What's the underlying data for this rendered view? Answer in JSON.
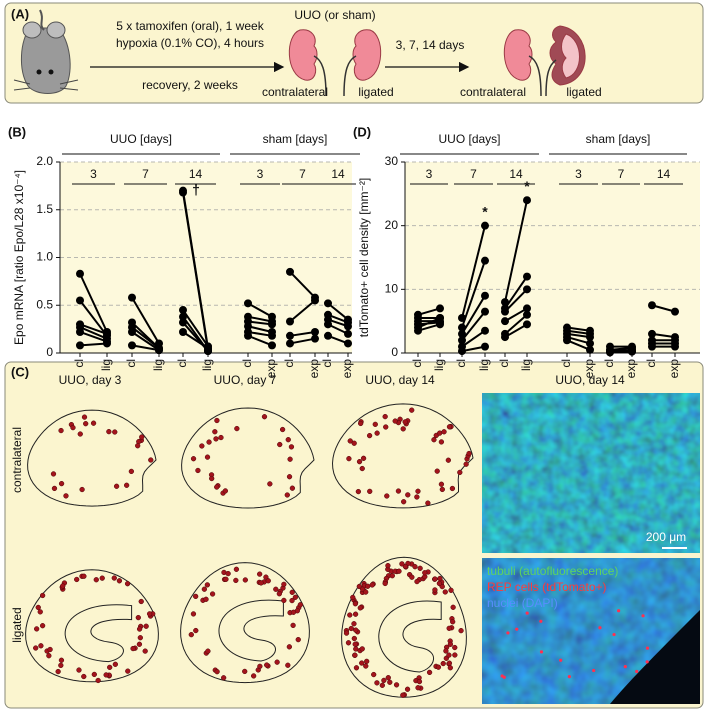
{
  "panel_a": {
    "label": "(A)",
    "step1_line1": "5 x tamoxifen (oral), 1 week",
    "step1_line2": "hypoxia (0.1% CO), 4 hours",
    "step1_below": "recovery, 2 weeks",
    "surgery": "UUO (or sham)",
    "kidney1_left": "contralateral",
    "kidney1_right": "ligated",
    "step2": "3, 7, 14 days",
    "kidney2_left": "contralateral",
    "kidney2_right": "ligated"
  },
  "chart_data": [
    {
      "type": "paired",
      "panel_label": "(B)",
      "y_label": "Epo mRNA [ratio Epo/L28 x10⁻⁴]",
      "ylim": [
        0,
        2
      ],
      "yticks": [
        0,
        0.5,
        {
          "value": 1,
          "label": "1.0"
        },
        {
          "value": 1.5,
          "label": "1.5"
        },
        {
          "value": 2,
          "label": "2.0"
        }
      ],
      "grid": true,
      "color": "#000000",
      "groups": [
        {
          "name": "UUO [days]",
          "sets": [
            {
              "name": "3",
              "labels": [
                "cl",
                "lig"
              ],
              "pairs": [
                [
                  0.83,
                  0.22
                ],
                [
                  0.55,
                  0.18
                ],
                [
                  0.3,
                  0.2
                ],
                [
                  0.27,
                  0.15
                ],
                [
                  0.22,
                  0.12
                ],
                [
                  0.08,
                  0.1
                ]
              ]
            },
            {
              "name": "7",
              "labels": [
                "cl",
                "lig"
              ],
              "pairs": [
                [
                  0.58,
                  0.1
                ],
                [
                  0.32,
                  0.05
                ],
                [
                  0.27,
                  0.05
                ],
                [
                  0.22,
                  0.03
                ],
                [
                  0.08,
                  0.03
                ]
              ]
            },
            {
              "name": "14",
              "labels": [
                "cl",
                "lig"
              ],
              "annotation": "†",
              "pairs": [
                [
                  1.7,
                  0.05
                ],
                [
                  1.68,
                  0.03
                ],
                [
                  0.45,
                  0.07
                ],
                [
                  0.38,
                  0.02
                ],
                [
                  0.32,
                  0.02
                ],
                [
                  0.22,
                  0.05
                ]
              ]
            }
          ]
        },
        {
          "name": "sham [days]",
          "sets": [
            {
              "name": "3",
              "labels": [
                "cl",
                "exp"
              ],
              "pairs": [
                [
                  0.52,
                  0.38
                ],
                [
                  0.38,
                  0.33
                ],
                [
                  0.33,
                  0.3
                ],
                [
                  0.28,
                  0.22
                ],
                [
                  0.22,
                  0.18
                ],
                [
                  0.18,
                  0.08
                ]
              ]
            },
            {
              "name": "7",
              "labels": [
                "cl",
                "exp"
              ],
              "pairs": [
                [
                  0.85,
                  0.58
                ],
                [
                  0.33,
                  0.55
                ],
                [
                  0.18,
                  0.22
                ],
                [
                  0.1,
                  0.15
                ]
              ]
            },
            {
              "name": "14",
              "labels": [
                "cl",
                "exp"
              ],
              "pairs": [
                [
                  0.52,
                  0.35
                ],
                [
                  0.4,
                  0.32
                ],
                [
                  0.35,
                  0.28
                ],
                [
                  0.3,
                  0.2
                ],
                [
                  0.18,
                  0.1
                ]
              ]
            }
          ]
        }
      ]
    },
    {
      "type": "paired",
      "panel_label": "(D)",
      "y_label": "tdTomato+ cell density [mm⁻²]",
      "ylim": [
        0,
        30
      ],
      "yticks": [
        0,
        10,
        20,
        30
      ],
      "grid": true,
      "color": "#000000",
      "groups": [
        {
          "name": "UUO [days]",
          "sets": [
            {
              "name": "3",
              "labels": [
                "cl",
                "lig"
              ],
              "pairs": [
                [
                  6,
                  7
                ],
                [
                  5.5,
                  5.5
                ],
                [
                  5,
                  5
                ],
                [
                  4.5,
                  4.8
                ],
                [
                  4,
                  5.5
                ],
                [
                  3.5,
                  4.5
                ]
              ]
            },
            {
              "name": "7",
              "labels": [
                "cl",
                "lig"
              ],
              "annotation": "*",
              "pairs": [
                [
                  5.5,
                  20
                ],
                [
                  4,
                  14.5
                ],
                [
                  3,
                  9
                ],
                [
                  2,
                  6.5
                ],
                [
                  1,
                  3.5
                ],
                [
                  0.3,
                  1
                ]
              ]
            },
            {
              "name": "14",
              "labels": [
                "cl",
                "lig"
              ],
              "annotation": "*",
              "pairs": [
                [
                  8,
                  24
                ],
                [
                  7,
                  12
                ],
                [
                  6.5,
                  10
                ],
                [
                  5,
                  7
                ],
                [
                  3,
                  6
                ],
                [
                  2.5,
                  4.5
                ]
              ]
            }
          ]
        },
        {
          "name": "sham [days]",
          "sets": [
            {
              "name": "3",
              "labels": [
                "cl",
                "exp"
              ],
              "pairs": [
                [
                  4,
                  3.5
                ],
                [
                  3.5,
                  3
                ],
                [
                  3,
                  2.5
                ],
                [
                  2.5,
                  1.5
                ],
                [
                  2,
                  0.5
                ]
              ]
            },
            {
              "name": "7",
              "labels": [
                "cl",
                "exp"
              ],
              "pairs": [
                [
                  1,
                  1
                ],
                [
                  0.5,
                  0.8
                ],
                [
                  0.3,
                  0.5
                ],
                [
                  0.2,
                  0.3
                ],
                [
                  0.1,
                  0.2
                ]
              ]
            },
            {
              "name": "14",
              "labels": [
                "cl",
                "exp"
              ],
              "pairs": [
                [
                  7.5,
                  6.5
                ],
                [
                  3,
                  2.5
                ],
                [
                  2,
                  2
                ],
                [
                  1.5,
                  1.5
                ],
                [
                  1,
                  1
                ]
              ]
            }
          ]
        }
      ]
    }
  ],
  "panel_c": {
    "label": "(C)",
    "columns": [
      "UUO, day 3",
      "UUO, day 7",
      "UUO, day 14",
      "UUO, day 14"
    ],
    "rows": [
      "contralateral",
      "ligated"
    ],
    "scale_bar": "200 μm",
    "legend": [
      "tubuli (autofluorescence)",
      "REP cells (tdTomato+)",
      "nuclei (DAPI)"
    ]
  }
}
